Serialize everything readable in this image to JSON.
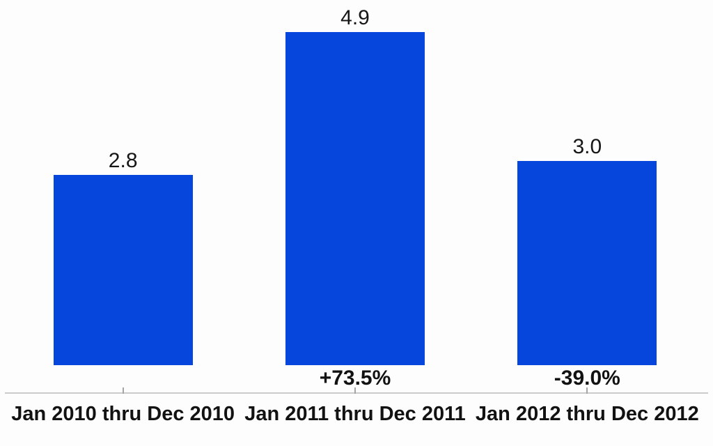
{
  "chart_data": {
    "type": "bar",
    "categories": [
      "Jan 2010 thru Dec 2010",
      "Jan 2011 thru Dec 2011",
      "Jan 2012 thru Dec 2012"
    ],
    "values": [
      2.8,
      4.9,
      3.0
    ],
    "value_labels": [
      "2.8",
      "4.9",
      "3.0"
    ],
    "change_labels": [
      "",
      "+73.5%",
      "-39.0%"
    ],
    "title": "",
    "xlabel": "",
    "ylabel": "",
    "ylim": [
      0,
      4.9
    ],
    "grid": false,
    "legend": "none",
    "bar_color": "#0646dc",
    "value_label_color": "#161616",
    "annotation_color": "#121212",
    "axis_line_color": "#cbcbcb",
    "tick_color": "#a5a5a5",
    "background_color": "#fdfdfd"
  }
}
